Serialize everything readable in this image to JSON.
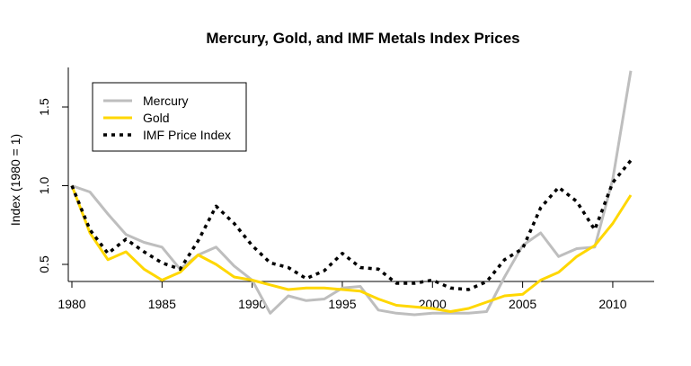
{
  "chart_data": {
    "type": "line",
    "title": "Mercury, Gold, and IMF Metals Index Prices",
    "xlabel": "",
    "ylabel": "Index (1980 = 1)",
    "xlim": [
      1980,
      2011
    ],
    "ylim": [
      0.15,
      1.75
    ],
    "x_ticks": [
      1980,
      1985,
      1990,
      1995,
      2000,
      2005,
      2010
    ],
    "y_ticks": [
      0.5,
      1.0,
      1.5
    ],
    "y_tick_labels": [
      "0.5",
      "1.0",
      "1.5"
    ],
    "legend_position": "top-left",
    "x": [
      1980,
      1981,
      1982,
      1983,
      1984,
      1985,
      1986,
      1987,
      1988,
      1989,
      1990,
      1991,
      1992,
      1993,
      1994,
      1995,
      1996,
      1997,
      1998,
      1999,
      2000,
      2001,
      2002,
      2003,
      2004,
      2005,
      2006,
      2007,
      2008,
      2009,
      2010,
      2011
    ],
    "series": [
      {
        "name": "Mercury",
        "color": "#bebebe",
        "style": "solid",
        "values": [
          1.0,
          0.96,
          0.82,
          0.69,
          0.64,
          0.61,
          0.47,
          0.56,
          0.61,
          0.49,
          0.4,
          0.19,
          0.3,
          0.27,
          0.28,
          0.35,
          0.36,
          0.21,
          0.19,
          0.18,
          0.19,
          0.19,
          0.19,
          0.2,
          0.42,
          0.62,
          0.7,
          0.55,
          0.6,
          0.61,
          1.04,
          1.73
        ]
      },
      {
        "name": "Gold",
        "color": "#ffd700",
        "style": "solid",
        "values": [
          1.0,
          0.7,
          0.53,
          0.58,
          0.47,
          0.4,
          0.45,
          0.56,
          0.5,
          0.42,
          0.4,
          0.37,
          0.34,
          0.35,
          0.35,
          0.34,
          0.33,
          0.28,
          0.24,
          0.23,
          0.22,
          0.2,
          0.22,
          0.26,
          0.3,
          0.31,
          0.4,
          0.45,
          0.55,
          0.62,
          0.76,
          0.94
        ]
      },
      {
        "name": "IMF Price Index",
        "color": "#000000",
        "style": "dotted",
        "values": [
          1.0,
          0.72,
          0.57,
          0.66,
          0.58,
          0.51,
          0.47,
          0.65,
          0.87,
          0.76,
          0.62,
          0.51,
          0.48,
          0.41,
          0.46,
          0.57,
          0.48,
          0.47,
          0.38,
          0.38,
          0.4,
          0.35,
          0.34,
          0.39,
          0.53,
          0.6,
          0.86,
          0.99,
          0.9,
          0.72,
          1.02,
          1.16
        ]
      }
    ]
  }
}
